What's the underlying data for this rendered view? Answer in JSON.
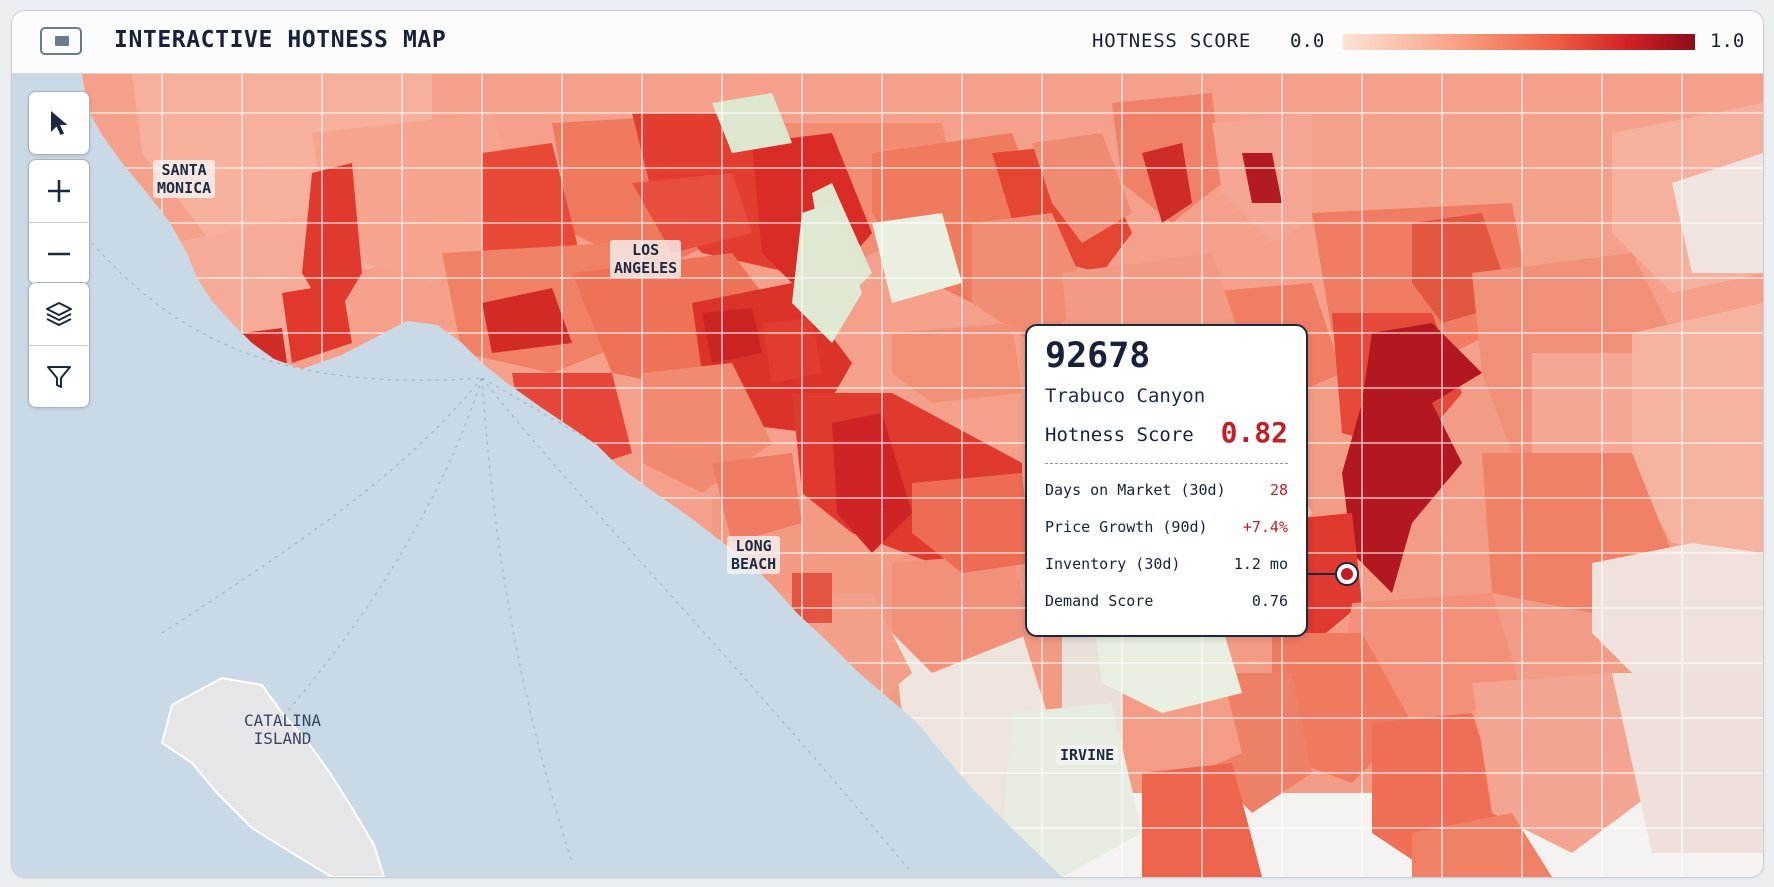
{
  "header": {
    "title": "INTERACTIVE HOTNESS MAP",
    "menu_icon": "panel-toggle-icon"
  },
  "legend": {
    "title": "HOTNESS SCORE",
    "min_label": "0.0",
    "max_label": "1.0",
    "min_value": 0.0,
    "max_value": 1.0,
    "colors": [
      "#fde3d7",
      "#f9a68a",
      "#ef5f43",
      "#cf1f25",
      "#8d0d17"
    ]
  },
  "toolbar": {
    "tools": [
      {
        "id": "select",
        "icon": "cursor-arrow-icon"
      },
      {
        "id": "zoom-in",
        "icon": "plus-icon"
      },
      {
        "id": "zoom-out",
        "icon": "minus-icon"
      },
      {
        "id": "layers",
        "icon": "layers-icon"
      },
      {
        "id": "filter",
        "icon": "filter-icon"
      }
    ]
  },
  "places": {
    "santa_monica": [
      "SANTA",
      "MONICA"
    ],
    "los_angeles": [
      "LOS",
      "ANGELES"
    ],
    "long_beach": [
      "LONG",
      "BEACH"
    ],
    "catalina": [
      "CATALINA",
      "ISLAND"
    ],
    "irvine": [
      "IRVINE"
    ]
  },
  "popup": {
    "zip": "92678",
    "name": "Trabuco Canyon",
    "score_label": "Hotness Score",
    "score_value": "0.82",
    "metrics": [
      {
        "label": "Days on Market (30d)",
        "value": "28"
      },
      {
        "label": "Price Growth (90d)",
        "value": "+7.4%"
      },
      {
        "label": "Inventory (30d)",
        "value": "1.2 mo"
      },
      {
        "label": "Demand Score",
        "value": "0.76"
      }
    ]
  },
  "colors": {
    "ocean": "#c9d9e6",
    "land": "#f4f3f1",
    "park": "#dfe7d0",
    "accent": "#c41e24",
    "text": "#17213a"
  }
}
